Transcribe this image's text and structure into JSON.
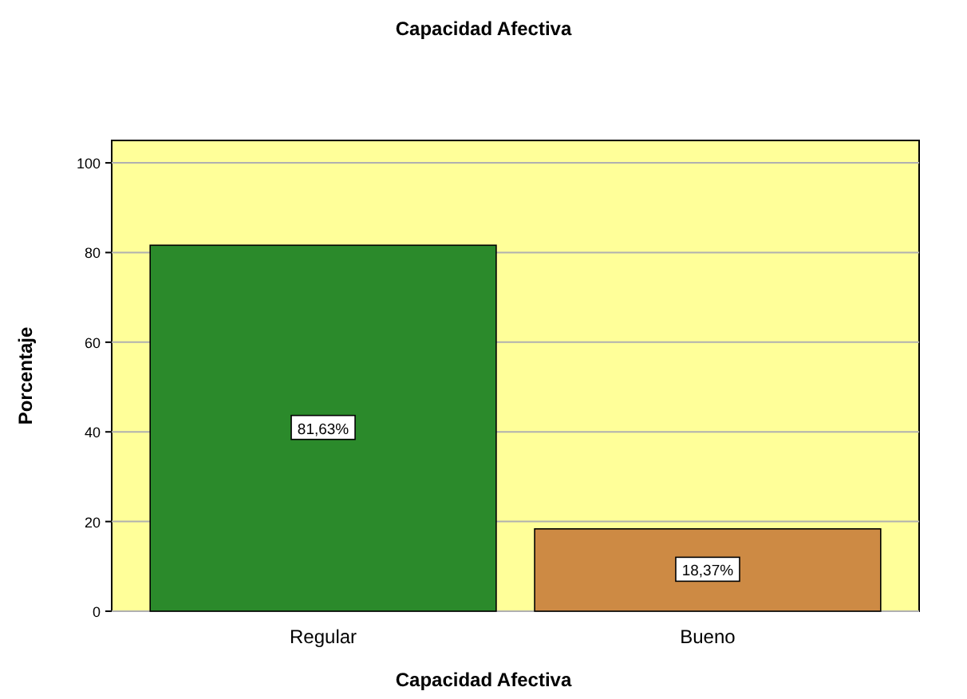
{
  "chart_data": {
    "type": "bar",
    "title": "Capacidad Afectiva",
    "xlabel": "Capacidad Afectiva",
    "ylabel": "Porcentaje",
    "categories": [
      "Regular",
      "Bueno"
    ],
    "values": [
      81.63,
      18.37
    ],
    "colors": [
      "#2b8a2b",
      "#cd8a44"
    ],
    "value_labels": [
      "81,63%",
      "18,37%"
    ],
    "ylim": [
      0,
      105
    ],
    "yticks": [
      0,
      20,
      40,
      60,
      80,
      100
    ],
    "grid": "y"
  }
}
